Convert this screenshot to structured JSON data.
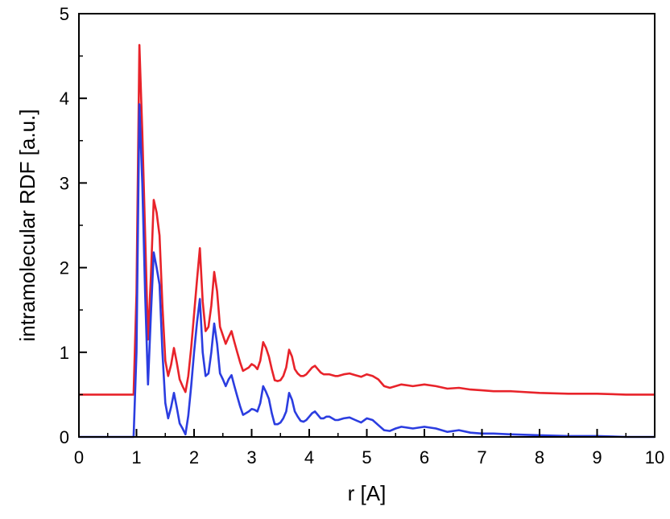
{
  "chart_data": {
    "type": "line",
    "title": "",
    "xlabel": "r [A]",
    "ylabel": "intramolecular RDF [a.u.]",
    "xlim": [
      0,
      10
    ],
    "ylim": [
      0,
      5
    ],
    "xticks": [
      "0",
      "1",
      "2",
      "3",
      "4",
      "5",
      "6",
      "7",
      "8",
      "9",
      "10"
    ],
    "yticks": [
      "0",
      "1",
      "2",
      "3",
      "4",
      "5"
    ],
    "grid": false,
    "legend": "none",
    "series": [
      {
        "color": "#e8232a",
        "x": [
          0,
          0.95,
          1.0,
          1.05,
          1.1,
          1.15,
          1.2,
          1.25,
          1.3,
          1.35,
          1.4,
          1.45,
          1.5,
          1.55,
          1.6,
          1.65,
          1.7,
          1.75,
          1.8,
          1.85,
          1.9,
          1.95,
          2.0,
          2.05,
          2.1,
          2.15,
          2.2,
          2.25,
          2.3,
          2.35,
          2.4,
          2.45,
          2.5,
          2.55,
          2.6,
          2.65,
          2.7,
          2.75,
          2.8,
          2.85,
          2.9,
          2.95,
          3.0,
          3.05,
          3.1,
          3.15,
          3.2,
          3.25,
          3.3,
          3.35,
          3.4,
          3.45,
          3.5,
          3.55,
          3.6,
          3.65,
          3.7,
          3.75,
          3.8,
          3.85,
          3.9,
          3.95,
          4.0,
          4.05,
          4.1,
          4.15,
          4.2,
          4.25,
          4.3,
          4.35,
          4.4,
          4.45,
          4.5,
          4.6,
          4.7,
          4.8,
          4.9,
          5.0,
          5.1,
          5.2,
          5.3,
          5.4,
          5.5,
          5.6,
          5.8,
          6.0,
          6.2,
          6.4,
          6.6,
          6.8,
          7.0,
          7.2,
          7.5,
          8.0,
          8.5,
          9.0,
          9.5,
          10.0
        ],
        "values": [
          0.5,
          0.5,
          1.7,
          4.63,
          3.6,
          2.4,
          1.15,
          1.9,
          2.8,
          2.65,
          2.38,
          1.55,
          0.9,
          0.72,
          0.85,
          1.05,
          0.88,
          0.68,
          0.6,
          0.53,
          0.72,
          1.05,
          1.45,
          1.85,
          2.23,
          1.6,
          1.25,
          1.3,
          1.55,
          1.95,
          1.72,
          1.3,
          1.2,
          1.1,
          1.18,
          1.25,
          1.12,
          1.0,
          0.88,
          0.78,
          0.8,
          0.82,
          0.86,
          0.84,
          0.8,
          0.9,
          1.12,
          1.05,
          0.95,
          0.8,
          0.67,
          0.66,
          0.67,
          0.72,
          0.82,
          1.03,
          0.95,
          0.8,
          0.75,
          0.72,
          0.72,
          0.74,
          0.78,
          0.82,
          0.84,
          0.8,
          0.76,
          0.74,
          0.74,
          0.74,
          0.73,
          0.72,
          0.72,
          0.74,
          0.75,
          0.73,
          0.71,
          0.74,
          0.72,
          0.68,
          0.6,
          0.58,
          0.6,
          0.62,
          0.6,
          0.62,
          0.6,
          0.57,
          0.58,
          0.56,
          0.55,
          0.54,
          0.54,
          0.52,
          0.51,
          0.51,
          0.5,
          0.5
        ]
      },
      {
        "color": "#2b3de0",
        "x": [
          0,
          0.95,
          1.0,
          1.05,
          1.1,
          1.15,
          1.2,
          1.25,
          1.3,
          1.35,
          1.4,
          1.45,
          1.5,
          1.55,
          1.6,
          1.65,
          1.7,
          1.75,
          1.8,
          1.85,
          1.9,
          1.95,
          2.0,
          2.05,
          2.1,
          2.15,
          2.2,
          2.25,
          2.3,
          2.35,
          2.4,
          2.45,
          2.5,
          2.55,
          2.6,
          2.65,
          2.7,
          2.75,
          2.8,
          2.85,
          2.9,
          2.95,
          3.0,
          3.05,
          3.1,
          3.15,
          3.2,
          3.25,
          3.3,
          3.35,
          3.4,
          3.45,
          3.5,
          3.55,
          3.6,
          3.65,
          3.7,
          3.75,
          3.8,
          3.85,
          3.9,
          3.95,
          4.0,
          4.05,
          4.1,
          4.15,
          4.2,
          4.25,
          4.3,
          4.35,
          4.4,
          4.45,
          4.5,
          4.6,
          4.7,
          4.8,
          4.9,
          5.0,
          5.1,
          5.2,
          5.3,
          5.4,
          5.5,
          5.6,
          5.8,
          6.0,
          6.2,
          6.4,
          6.6,
          6.8,
          7.0,
          7.2,
          7.5,
          8.0,
          8.5,
          9.0,
          9.5,
          10.0
        ],
        "values": [
          0.0,
          0.0,
          1.0,
          3.93,
          3.0,
          1.7,
          0.62,
          1.45,
          2.18,
          2.0,
          1.8,
          1.0,
          0.4,
          0.22,
          0.35,
          0.52,
          0.35,
          0.16,
          0.1,
          0.03,
          0.25,
          0.6,
          1.0,
          1.35,
          1.63,
          1.0,
          0.72,
          0.75,
          1.0,
          1.34,
          1.1,
          0.75,
          0.68,
          0.6,
          0.68,
          0.73,
          0.6,
          0.48,
          0.36,
          0.26,
          0.28,
          0.3,
          0.33,
          0.32,
          0.3,
          0.4,
          0.6,
          0.53,
          0.45,
          0.28,
          0.15,
          0.15,
          0.17,
          0.22,
          0.3,
          0.52,
          0.44,
          0.3,
          0.24,
          0.19,
          0.18,
          0.2,
          0.24,
          0.28,
          0.3,
          0.26,
          0.22,
          0.22,
          0.24,
          0.24,
          0.22,
          0.2,
          0.2,
          0.22,
          0.23,
          0.2,
          0.17,
          0.22,
          0.2,
          0.14,
          0.08,
          0.07,
          0.1,
          0.12,
          0.1,
          0.12,
          0.1,
          0.06,
          0.08,
          0.05,
          0.04,
          0.04,
          0.03,
          0.02,
          0.01,
          0.01,
          0.0,
          0.0
        ]
      }
    ]
  }
}
